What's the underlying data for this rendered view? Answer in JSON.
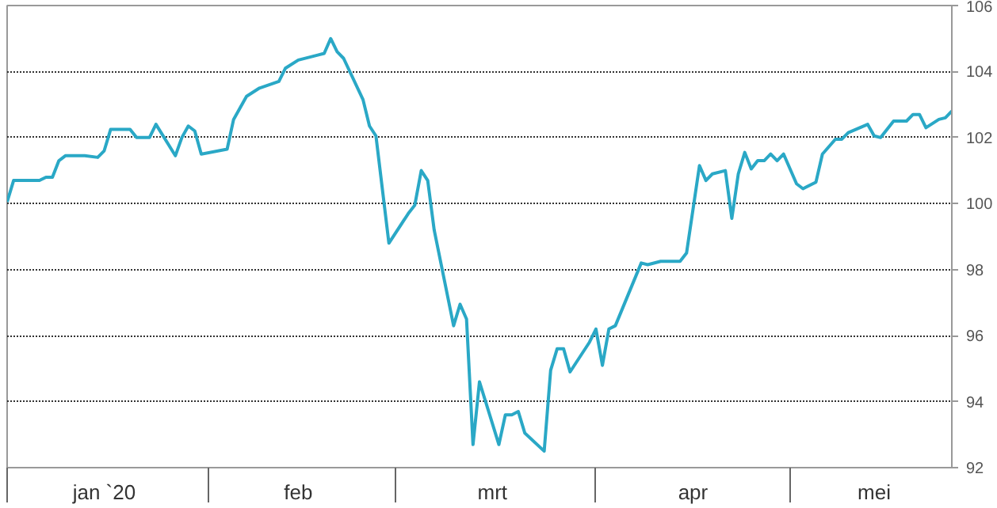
{
  "chart_data": {
    "type": "line",
    "line_style": "solid",
    "marker": "none",
    "grid": "y",
    "xlim": [
      "2020-01-01",
      "2020-05-26"
    ],
    "ylim": [
      92,
      106
    ],
    "yticks": [
      92,
      94,
      96,
      98,
      100,
      102,
      104,
      106
    ],
    "xticks": [
      {
        "value": "2020-01-16",
        "label": "jan `20"
      },
      {
        "value": "2020-02-15",
        "label": "feb"
      },
      {
        "value": "2020-03-16",
        "label": "mrt"
      },
      {
        "value": "2020-04-16",
        "label": "apr"
      },
      {
        "value": "2020-05-14",
        "label": "mei"
      }
    ],
    "series": [
      {
        "color": "#2aa8c6",
        "x": [
          "2020-01-01",
          "2020-01-02",
          "2020-01-06",
          "2020-01-07",
          "2020-01-08",
          "2020-01-09",
          "2020-01-10",
          "2020-01-13",
          "2020-01-15",
          "2020-01-16",
          "2020-01-17",
          "2020-01-20",
          "2020-01-21",
          "2020-01-23",
          "2020-01-24",
          "2020-01-27",
          "2020-01-28",
          "2020-01-29",
          "2020-01-30",
          "2020-01-31",
          "2020-02-04",
          "2020-02-05",
          "2020-02-07",
          "2020-02-09",
          "2020-02-12",
          "2020-02-13",
          "2020-02-15",
          "2020-02-18",
          "2020-02-19",
          "2020-02-20",
          "2020-02-21",
          "2020-02-22",
          "2020-02-25",
          "2020-02-26",
          "2020-02-27",
          "2020-02-29",
          "2020-03-03",
          "2020-03-04",
          "2020-03-05",
          "2020-03-06",
          "2020-03-07",
          "2020-03-10",
          "2020-03-11",
          "2020-03-12",
          "2020-03-13",
          "2020-03-14",
          "2020-03-17",
          "2020-03-18",
          "2020-03-19",
          "2020-03-20",
          "2020-03-21",
          "2020-03-24",
          "2020-03-25",
          "2020-03-26",
          "2020-03-27",
          "2020-03-28",
          "2020-03-31",
          "2020-04-01",
          "2020-04-02",
          "2020-04-03",
          "2020-04-04",
          "2020-04-08",
          "2020-04-09",
          "2020-04-11",
          "2020-04-14",
          "2020-04-15",
          "2020-04-17",
          "2020-04-18",
          "2020-04-19",
          "2020-04-21",
          "2020-04-22",
          "2020-04-23",
          "2020-04-24",
          "2020-04-25",
          "2020-04-26",
          "2020-04-27",
          "2020-04-28",
          "2020-04-29",
          "2020-04-30",
          "2020-05-02",
          "2020-05-03",
          "2020-05-05",
          "2020-05-06",
          "2020-05-08",
          "2020-05-09",
          "2020-05-10",
          "2020-05-13",
          "2020-05-14",
          "2020-05-15",
          "2020-05-17",
          "2020-05-19",
          "2020-05-20",
          "2020-05-21",
          "2020-05-22",
          "2020-05-24",
          "2020-05-25",
          "2020-05-26"
        ],
        "values": [
          100.05,
          100.7,
          100.7,
          100.8,
          100.8,
          101.3,
          101.45,
          101.45,
          101.4,
          101.6,
          102.25,
          102.25,
          102.0,
          102.0,
          102.4,
          101.45,
          102.0,
          102.35,
          102.2,
          101.5,
          101.65,
          102.55,
          103.25,
          103.5,
          103.7,
          104.1,
          104.35,
          104.5,
          104.55,
          105.0,
          104.6,
          104.4,
          103.15,
          102.35,
          102.05,
          98.8,
          99.7,
          99.95,
          101.0,
          100.7,
          99.2,
          96.3,
          96.95,
          96.5,
          92.7,
          94.6,
          92.7,
          93.6,
          93.6,
          93.7,
          93.05,
          92.5,
          94.95,
          95.6,
          95.6,
          94.9,
          95.8,
          96.2,
          95.1,
          96.2,
          96.3,
          98.2,
          98.15,
          98.25,
          98.25,
          98.5,
          101.15,
          100.7,
          100.9,
          101.0,
          99.55,
          100.9,
          101.55,
          101.05,
          101.3,
          101.3,
          101.5,
          101.3,
          101.5,
          100.6,
          100.45,
          100.65,
          101.5,
          101.95,
          101.95,
          102.15,
          102.4,
          102.05,
          102.0,
          102.5,
          102.5,
          102.7,
          102.7,
          102.3,
          102.55,
          102.6,
          102.8
        ]
      }
    ]
  }
}
